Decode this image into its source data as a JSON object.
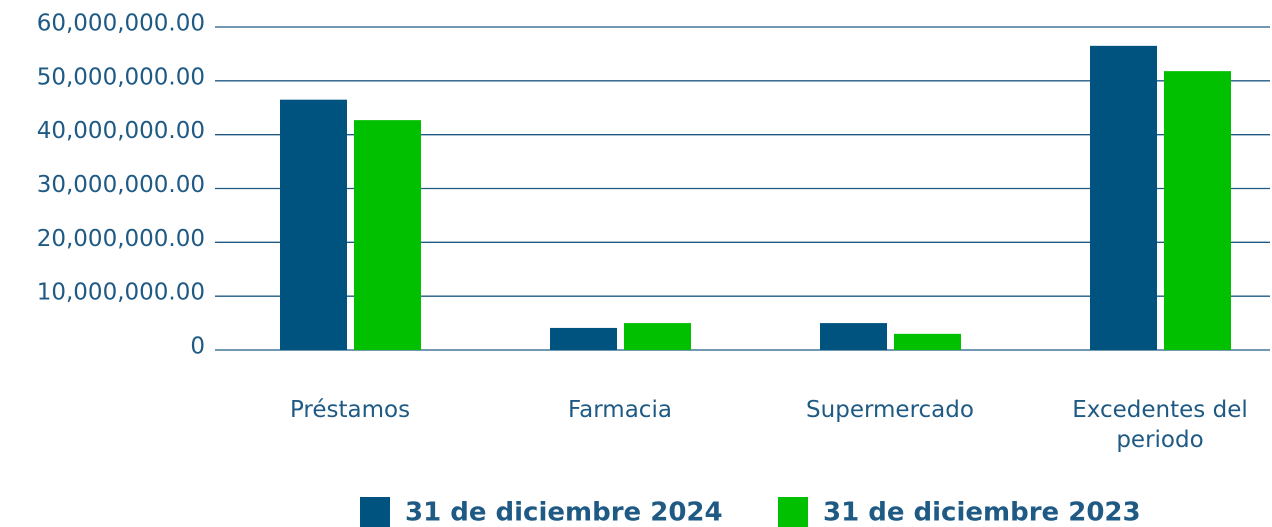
{
  "chart_data": {
    "type": "bar",
    "categories": [
      "Préstamos",
      "Farmacia",
      "Supermercado",
      "Excedentes del periodo"
    ],
    "series": [
      {
        "name": "31 de diciembre 2024",
        "color": "#00537f",
        "values": [
          46500000,
          4100000,
          5000000,
          56500000
        ]
      },
      {
        "name": "31 de diciembre 2023",
        "color": "#00c000",
        "values": [
          42700000,
          5000000,
          3000000,
          51800000
        ]
      }
    ],
    "ylim": [
      0,
      60000000
    ],
    "yticks": [
      0,
      {
        "value": 10000000,
        "label": "10,000,000.00"
      },
      {
        "value": 20000000,
        "label": "20,000,000.00"
      },
      {
        "value": 30000000,
        "label": "30,000,000.00"
      },
      {
        "value": 40000000,
        "label": "40,000,000.00"
      },
      {
        "value": 50000000,
        "label": "50,000,000.00"
      },
      {
        "value": 60000000,
        "label": "60,000,000.00"
      }
    ],
    "grid": true,
    "legend": "bottom"
  }
}
